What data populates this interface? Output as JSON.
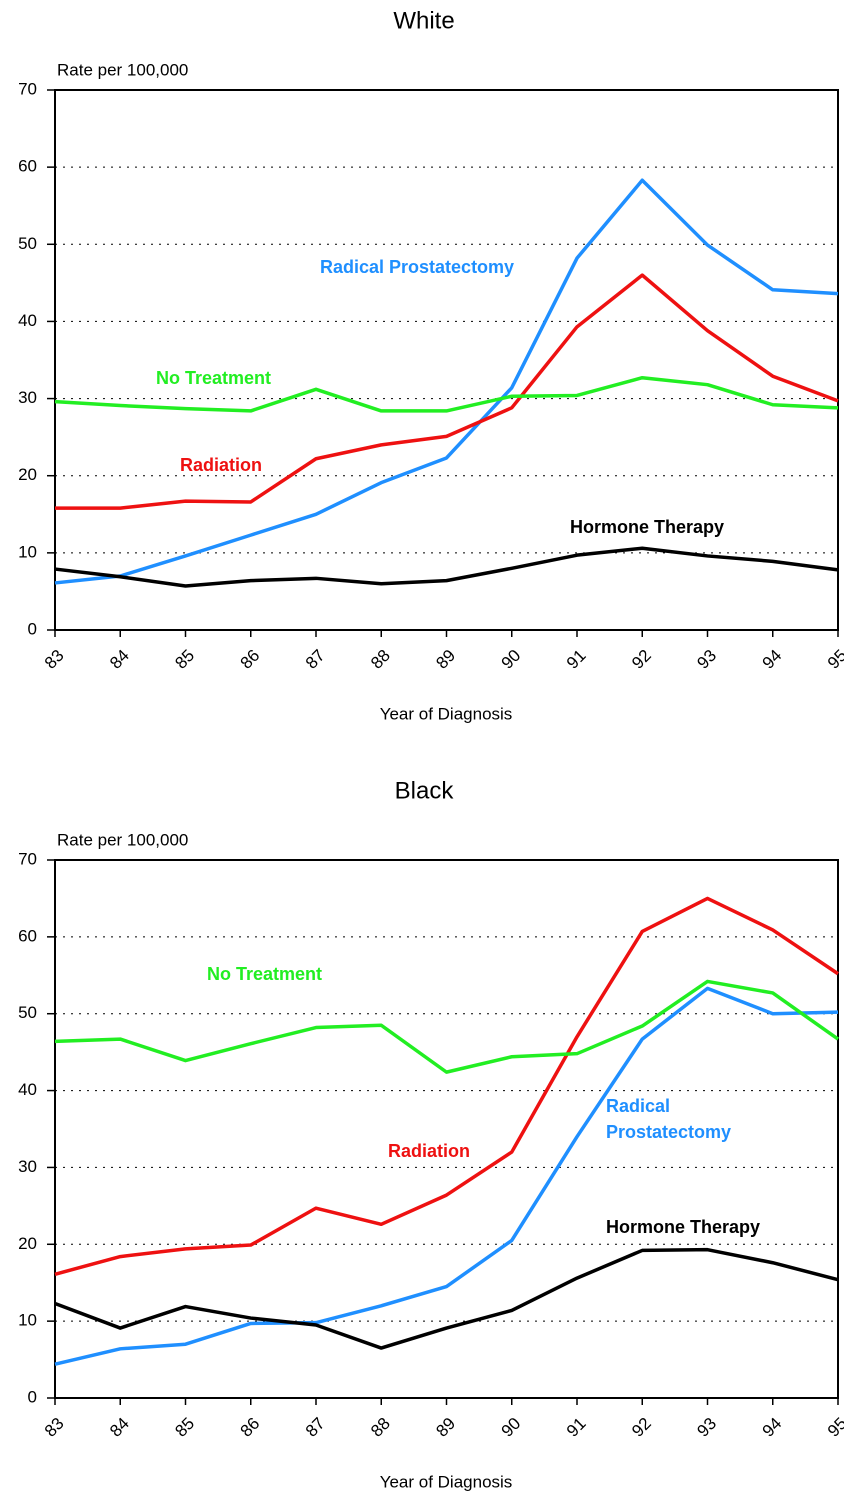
{
  "chart_data": [
    {
      "type": "line",
      "title": "White",
      "y_label": "Rate per 100,000",
      "x_label": "Year of Diagnosis",
      "categories": [
        "83",
        "84",
        "85",
        "86",
        "87",
        "88",
        "89",
        "90",
        "91",
        "92",
        "93",
        "94",
        "95"
      ],
      "ylim": [
        0,
        70
      ],
      "yticks": [
        0,
        10,
        20,
        30,
        40,
        50,
        60,
        70
      ],
      "grid": true,
      "series": [
        {
          "name": "Radical Prostatectomy",
          "color": "#1f8fff",
          "values": [
            6.1,
            7.0,
            9.6,
            12.3,
            15.0,
            19.1,
            22.3,
            31.4,
            48.2,
            58.3,
            49.9,
            44.1,
            43.6
          ]
        },
        {
          "name": "Radiation",
          "color": "#ee1111",
          "values": [
            15.8,
            15.8,
            16.7,
            16.6,
            22.2,
            24.0,
            25.1,
            28.8,
            39.3,
            46.0,
            38.8,
            32.9,
            29.7
          ]
        },
        {
          "name": "No Treatment",
          "color": "#22ee22",
          "values": [
            29.6,
            29.1,
            28.7,
            28.4,
            31.2,
            28.4,
            28.4,
            30.3,
            30.4,
            32.7,
            31.8,
            29.2,
            28.8
          ]
        },
        {
          "name": "Hormone Therapy",
          "color": "#000000",
          "values": [
            7.9,
            6.9,
            5.7,
            6.4,
            6.7,
            6.0,
            6.4,
            8.0,
            9.7,
            10.6,
            9.6,
            8.9,
            7.8
          ]
        }
      ]
    },
    {
      "type": "line",
      "title": "Black",
      "y_label": "Rate per 100,000",
      "x_label": "Year of Diagnosis",
      "categories": [
        "83",
        "84",
        "85",
        "86",
        "87",
        "88",
        "89",
        "90",
        "91",
        "92",
        "93",
        "94",
        "95"
      ],
      "ylim": [
        0,
        70
      ],
      "yticks": [
        0,
        10,
        20,
        30,
        40,
        50,
        60,
        70
      ],
      "grid": true,
      "series": [
        {
          "name": "Radical Prostatectomy",
          "color": "#1f8fff",
          "values": [
            4.4,
            6.4,
            7.0,
            9.7,
            9.8,
            12.0,
            14.5,
            20.5,
            34.0,
            46.7,
            53.3,
            50.0,
            50.2
          ]
        },
        {
          "name": "Radiation",
          "color": "#ee1111",
          "values": [
            16.1,
            18.4,
            19.4,
            19.9,
            24.7,
            22.6,
            26.4,
            32.0,
            47.0,
            60.7,
            65.0,
            60.9,
            55.2
          ]
        },
        {
          "name": "No Treatment",
          "color": "#22ee22",
          "values": [
            46.4,
            46.7,
            43.9,
            46.1,
            48.2,
            48.5,
            42.4,
            44.4,
            44.8,
            48.4,
            54.2,
            52.7,
            46.7
          ]
        },
        {
          "name": "Hormone Therapy",
          "color": "#000000",
          "values": [
            12.3,
            9.1,
            11.9,
            10.4,
            9.5,
            6.5,
            9.1,
            11.4,
            15.6,
            19.2,
            19.3,
            17.6,
            15.4
          ]
        }
      ]
    }
  ]
}
